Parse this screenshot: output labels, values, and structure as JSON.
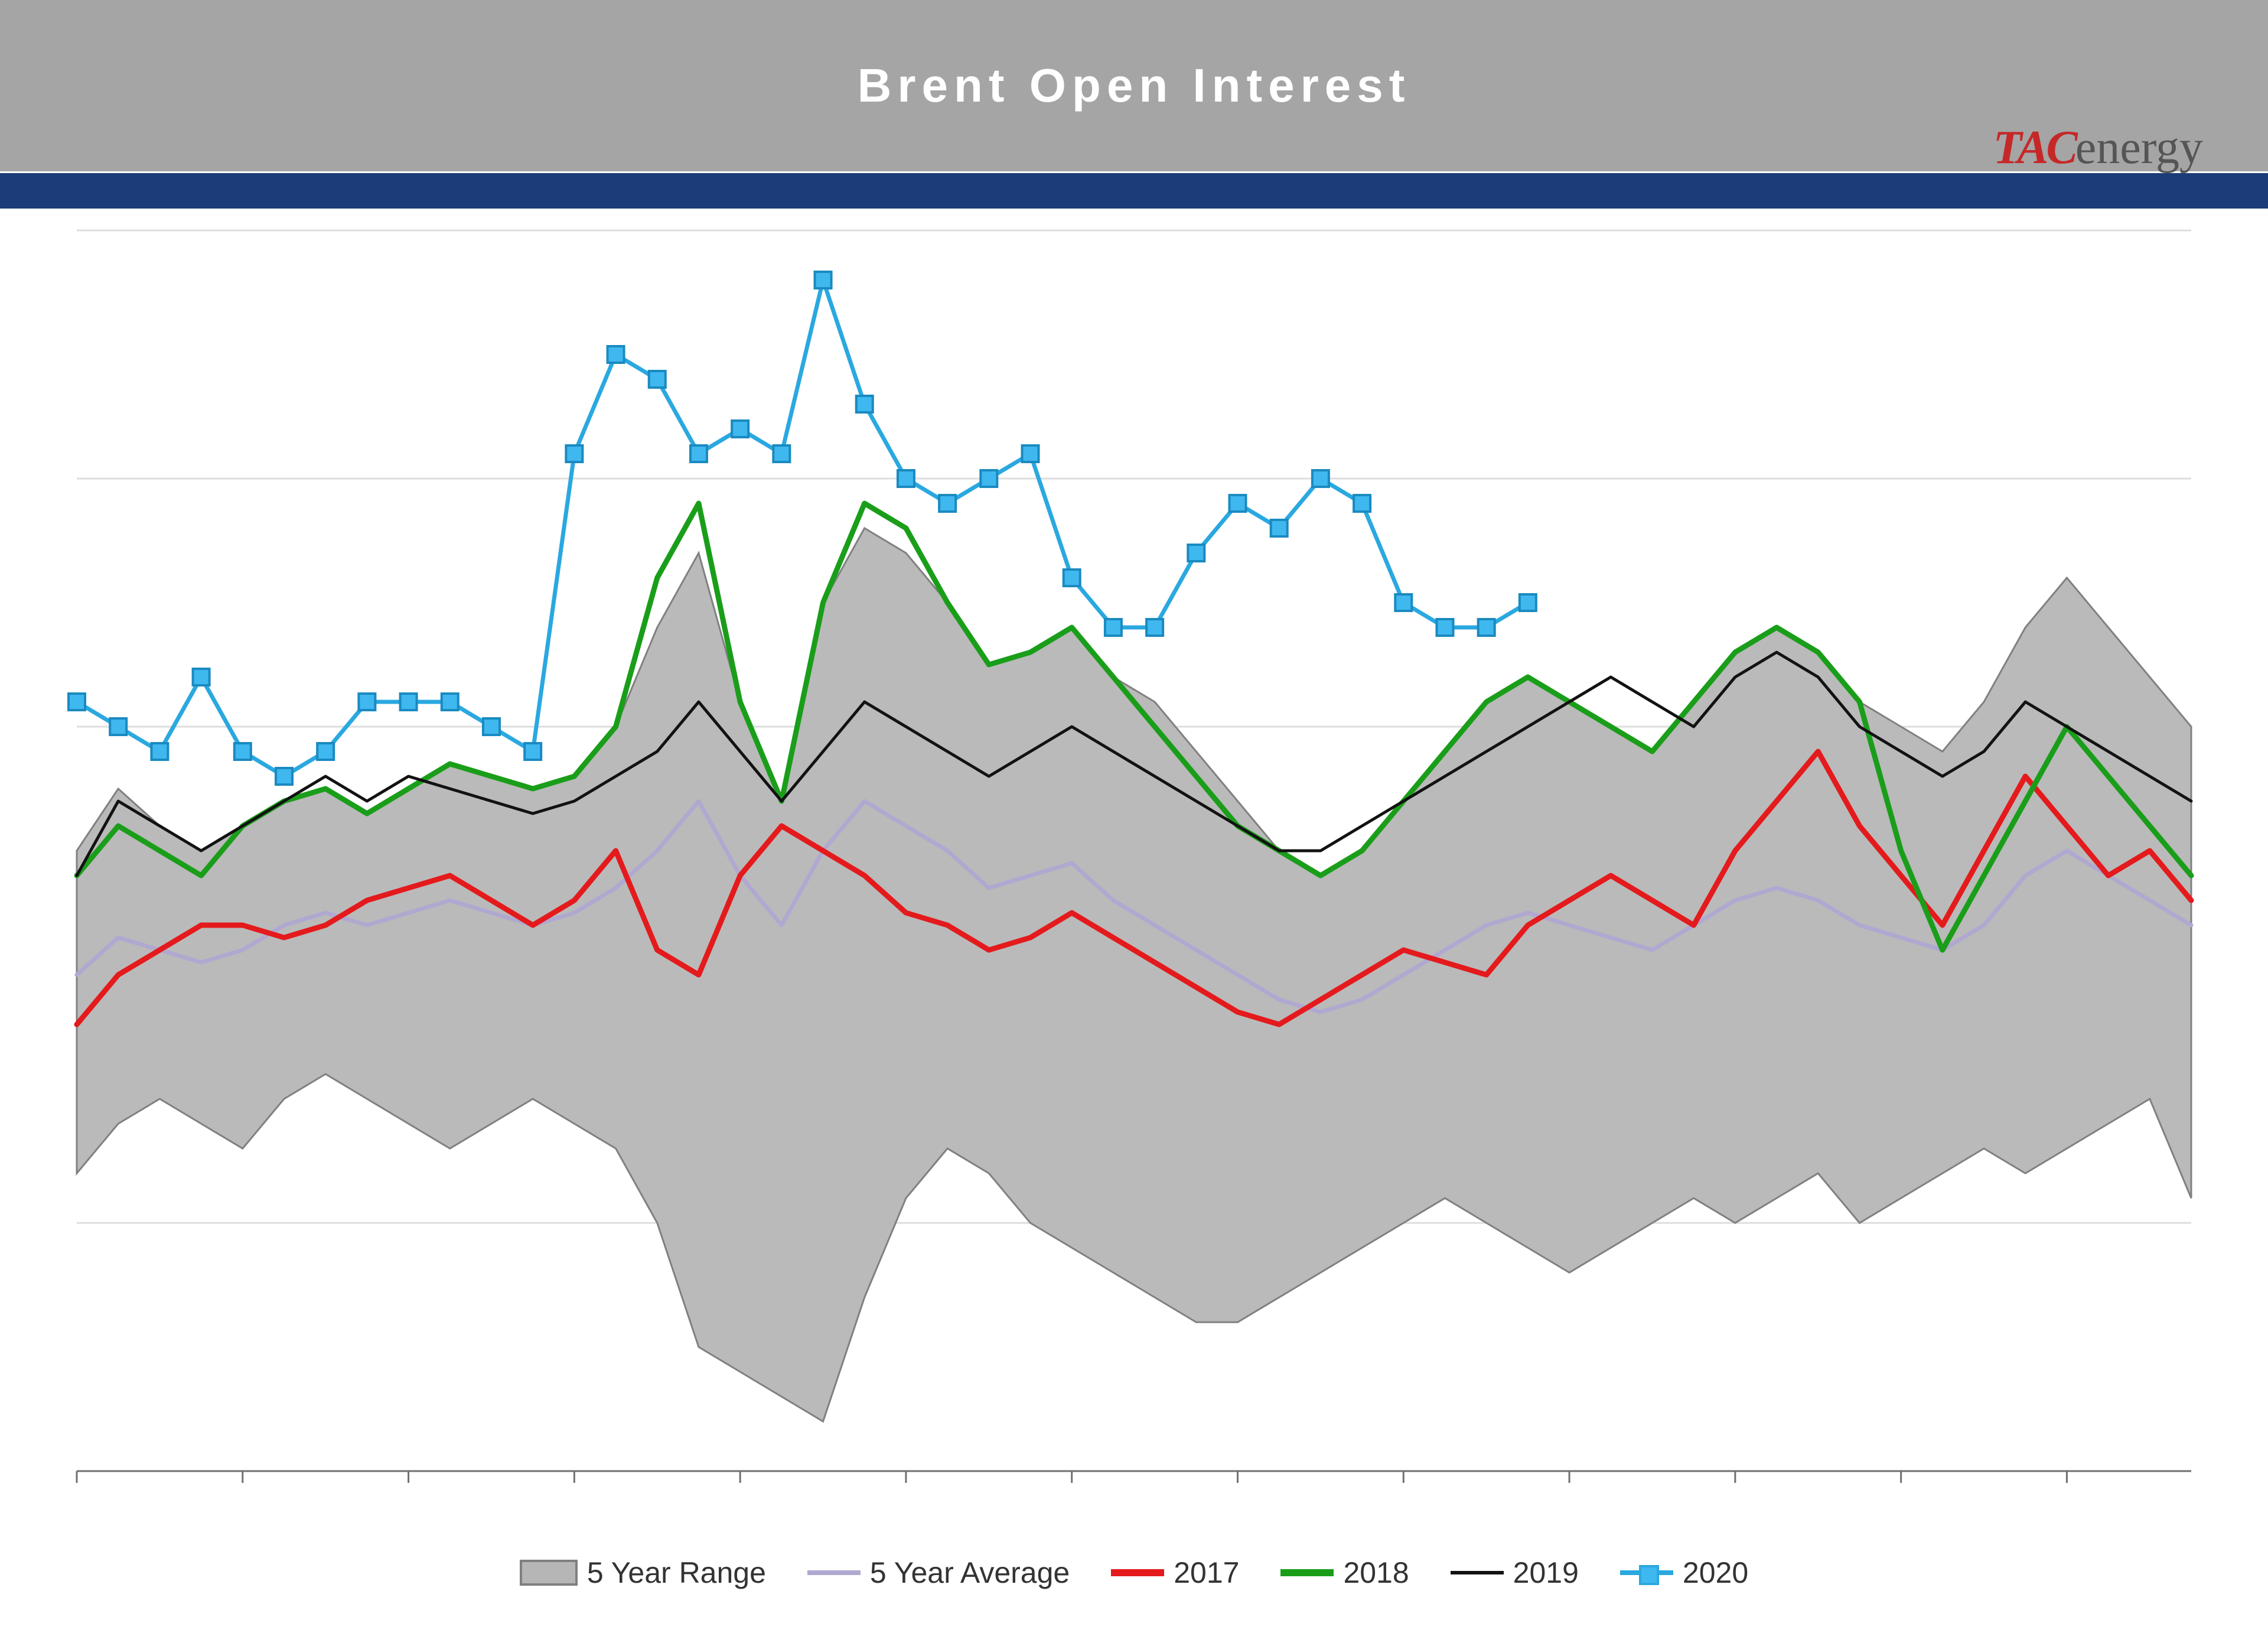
{
  "title": "Brent Open Interest",
  "brand_tac": "TAC",
  "brand_energy": "energy",
  "chart": {
    "type": "line-with-band",
    "background_color": "#ffffff",
    "grid_color": "#dedede",
    "header_bg": "#a5a5a5",
    "accent_bar": "#1b3c78",
    "ylim": [
      0,
      100
    ],
    "y_gridlines": [
      20,
      40,
      60,
      80,
      100
    ],
    "x_count": 52,
    "band": {
      "label": "5 Year Range",
      "fill": "#b6b6b6",
      "stroke": "#808080",
      "upper": [
        50,
        55,
        52,
        50,
        52,
        54,
        55,
        53,
        55,
        57,
        56,
        55,
        56,
        60,
        68,
        74,
        62,
        54,
        70,
        76,
        74,
        70,
        65,
        66,
        68,
        64,
        62,
        58,
        54,
        50,
        48,
        50,
        54,
        58,
        62,
        64,
        62,
        60,
        58,
        62,
        66,
        68,
        66,
        62,
        60,
        58,
        62,
        68,
        72,
        68,
        64,
        60
      ],
      "lower": [
        24,
        28,
        30,
        28,
        26,
        30,
        32,
        30,
        28,
        26,
        28,
        30,
        28,
        26,
        20,
        10,
        8,
        6,
        4,
        14,
        22,
        26,
        24,
        20,
        18,
        16,
        14,
        12,
        12,
        14,
        16,
        18,
        20,
        22,
        20,
        18,
        16,
        18,
        20,
        22,
        20,
        22,
        24,
        20,
        22,
        24,
        26,
        24,
        26,
        28,
        30,
        22
      ]
    },
    "series": [
      {
        "label": "5 Year Average",
        "color": "#b0a8d0",
        "width": 7,
        "values": [
          40,
          43,
          42,
          41,
          42,
          44,
          45,
          44,
          45,
          46,
          45,
          44,
          45,
          47,
          50,
          54,
          48,
          44,
          50,
          54,
          52,
          50,
          47,
          48,
          49,
          46,
          44,
          42,
          40,
          38,
          37,
          38,
          40,
          42,
          44,
          45,
          44,
          43,
          42,
          44,
          46,
          47,
          46,
          44,
          43,
          42,
          44,
          48,
          50,
          48,
          46,
          44
        ]
      },
      {
        "label": "2017",
        "color": "#e41a1c",
        "width": 9,
        "values": [
          36,
          40,
          42,
          44,
          44,
          43,
          44,
          46,
          47,
          48,
          46,
          44,
          46,
          50,
          42,
          40,
          48,
          52,
          50,
          48,
          45,
          44,
          42,
          43,
          45,
          43,
          41,
          39,
          37,
          36,
          38,
          40,
          42,
          41,
          40,
          44,
          46,
          48,
          46,
          44,
          50,
          54,
          58,
          52,
          48,
          44,
          50,
          56,
          52,
          48,
          50,
          46
        ]
      },
      {
        "label": "2018",
        "color": "#1a9e1a",
        "width": 9,
        "values": [
          48,
          52,
          50,
          48,
          52,
          54,
          55,
          53,
          55,
          57,
          56,
          55,
          56,
          60,
          72,
          78,
          62,
          54,
          70,
          78,
          76,
          70,
          65,
          66,
          68,
          64,
          60,
          56,
          52,
          50,
          48,
          50,
          54,
          58,
          62,
          64,
          62,
          60,
          58,
          62,
          66,
          68,
          66,
          62,
          50,
          42,
          48,
          54,
          60,
          56,
          52,
          48
        ]
      },
      {
        "label": "2019",
        "color": "#121212",
        "width": 5,
        "values": [
          48,
          54,
          52,
          50,
          52,
          54,
          56,
          54,
          56,
          55,
          54,
          53,
          54,
          56,
          58,
          62,
          58,
          54,
          58,
          62,
          60,
          58,
          56,
          58,
          60,
          58,
          56,
          54,
          52,
          50,
          50,
          52,
          54,
          56,
          58,
          60,
          62,
          64,
          62,
          60,
          64,
          66,
          64,
          60,
          58,
          56,
          58,
          62,
          60,
          58,
          56,
          54
        ]
      },
      {
        "label": "2020",
        "color": "#2aa8e0",
        "width": 7,
        "markers": true,
        "values": [
          62,
          60,
          58,
          64,
          58,
          56,
          58,
          62,
          62,
          62,
          60,
          58,
          82,
          90,
          88,
          82,
          84,
          82,
          96,
          86,
          80,
          78,
          80,
          82,
          72,
          68,
          68,
          74,
          78,
          76,
          80,
          78,
          70,
          68,
          68,
          70
        ]
      }
    ],
    "legend_labels": {
      "range": "5 Year Range",
      "avg": "5 Year Average",
      "s2017": "2017",
      "s2018": "2018",
      "s2019": "2019",
      "s2020": "2020"
    }
  }
}
